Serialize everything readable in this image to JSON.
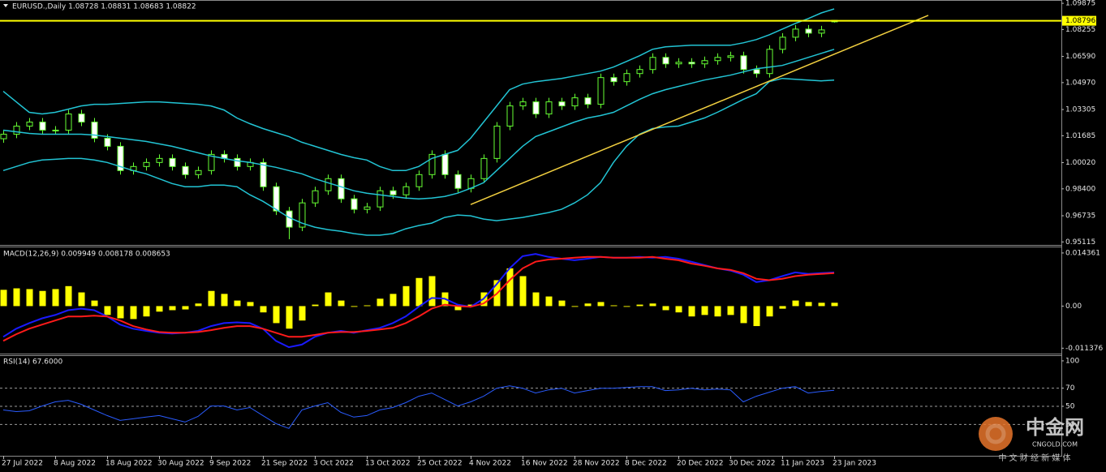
{
  "chart_data": [
    {
      "type": "candlestick",
      "title": "EURUSD.,Daily 1.08728 1.08831 1.08683 1.08822",
      "categories": [
        "27 Jul 2022",
        null,
        null,
        null,
        "8 Aug 2022",
        null,
        null,
        null,
        "18 Aug 2022",
        null,
        null,
        null,
        "30 Aug 2022",
        null,
        null,
        null,
        "9 Sep 2022",
        null,
        null,
        null,
        "21 Sep 2022",
        null,
        null,
        null,
        "3 Oct 2022",
        null,
        null,
        null,
        "13 Oct 2022",
        null,
        null,
        null,
        "25 Oct 2022",
        null,
        null,
        null,
        "4 Nov 2022",
        null,
        null,
        null,
        "16 Nov 2022",
        null,
        null,
        null,
        "28 Nov 2022",
        null,
        null,
        null,
        "8 Dec 2022",
        null,
        null,
        null,
        "20 Dec 2022",
        null,
        null,
        null,
        "30 Dec 2022",
        null,
        null,
        null,
        "11 Jan 2023",
        null,
        null,
        null,
        "23 Jan 2023"
      ],
      "open": [
        1.015,
        1.0178,
        1.0228,
        1.0253,
        1.0203,
        1.0203,
        1.0303,
        1.0253,
        1.0153,
        1.0103,
        0.9953,
        0.9978,
        1.0003,
        1.0028,
        0.9978,
        0.9928,
        0.9953,
        1.0053,
        1.0028,
        0.9978,
        1.0003,
        0.9853,
        0.9703,
        0.9603,
        0.9753,
        0.9828,
        0.9903,
        0.9778,
        0.9713,
        0.9728,
        0.9828,
        0.9803,
        0.9853,
        0.9928,
        1.0053,
        0.9928,
        0.9843,
        0.9903,
        1.0028,
        1.0228,
        1.0353,
        1.0378,
        1.0303,
        1.0378,
        1.0353,
        1.0403,
        1.0363,
        1.0528,
        1.0503,
        1.0553,
        1.0578,
        1.0653,
        1.0613,
        1.0623,
        1.0613,
        1.0633,
        1.0653,
        1.0663,
        1.0578,
        1.0553,
        1.0703,
        1.0778,
        1.0828,
        1.0803,
        1.0873
      ],
      "high": [
        1.0203,
        1.0253,
        1.0278,
        1.0278,
        1.0228,
        1.0328,
        1.0328,
        1.0278,
        1.0178,
        1.0128,
        1.0003,
        1.0028,
        1.0053,
        1.0053,
        1.0003,
        0.9978,
        1.0078,
        1.0078,
        1.0053,
        1.0028,
        1.0028,
        0.9878,
        0.9728,
        0.9778,
        0.9853,
        0.9928,
        0.9928,
        0.9803,
        0.9753,
        0.9853,
        0.9853,
        0.9878,
        0.9953,
        1.0078,
        1.0078,
        0.9953,
        0.9928,
        1.0053,
        1.0253,
        1.0378,
        1.0403,
        1.0403,
        1.0403,
        1.0403,
        1.0428,
        1.0428,
        1.0553,
        1.0553,
        1.0578,
        1.0603,
        1.0678,
        1.0678,
        1.0648,
        1.0648,
        1.0658,
        1.0678,
        1.0688,
        1.0688,
        1.0603,
        1.0728,
        1.0803,
        1.0853,
        1.0853,
        1.0848,
        1.0883
      ],
      "low": [
        1.0125,
        1.0153,
        1.0203,
        1.0178,
        1.0178,
        1.0178,
        1.0228,
        1.0128,
        1.0078,
        0.9928,
        0.9928,
        0.9953,
        0.9978,
        0.9953,
        0.9903,
        0.9903,
        0.9928,
        1.0003,
        0.9953,
        0.9953,
        0.9828,
        0.9678,
        0.9528,
        0.9578,
        0.9728,
        0.9803,
        0.9753,
        0.9688,
        0.9688,
        0.9703,
        0.9778,
        0.9778,
        0.9828,
        0.9903,
        0.9903,
        0.9818,
        0.9818,
        0.9878,
        1.0003,
        1.0203,
        1.0328,
        1.0278,
        1.0278,
        1.0328,
        1.0328,
        1.0338,
        1.0338,
        1.0478,
        1.0478,
        1.0528,
        1.0553,
        1.0588,
        1.0588,
        1.0588,
        1.0588,
        1.0608,
        1.0628,
        1.0553,
        1.0528,
        1.0528,
        1.0678,
        1.0753,
        1.0778,
        1.0778,
        1.0868
      ],
      "close": [
        1.0178,
        1.0228,
        1.0253,
        1.0203,
        1.0203,
        1.0303,
        1.0253,
        1.0153,
        1.0103,
        0.9953,
        0.9978,
        1.0003,
        1.0028,
        0.9978,
        0.9928,
        0.9953,
        1.0053,
        1.0028,
        0.9978,
        1.0003,
        0.9853,
        0.9703,
        0.9603,
        0.9753,
        0.9828,
        0.9903,
        0.9778,
        0.9713,
        0.9728,
        0.9828,
        0.9803,
        0.9853,
        0.9928,
        1.0053,
        0.9928,
        0.9843,
        0.9903,
        1.0028,
        1.0228,
        1.0353,
        1.0378,
        1.0303,
        1.0378,
        1.0353,
        1.0403,
        1.0363,
        1.0528,
        1.0503,
        1.0553,
        1.0578,
        1.0653,
        1.0613,
        1.0623,
        1.0613,
        1.0633,
        1.0653,
        1.0663,
        1.0578,
        1.0553,
        1.0703,
        1.0778,
        1.0828,
        1.0803,
        1.0823,
        1.0882
      ],
      "up_color": "#000000",
      "down_color": "#ffffff",
      "wick_color": "#66ff33",
      "overlays": [
        {
          "color": "#22c4d4",
          "values": [
            1.0443,
            1.0378,
            1.0313,
            1.0303,
            1.0313,
            1.0333,
            1.0353,
            1.0363,
            1.0363,
            1.0368,
            1.0373,
            1.0378,
            1.0378,
            1.0373,
            1.0368,
            1.0363,
            1.0353,
            1.0328,
            1.0278,
            1.0243,
            1.0213,
            1.0188,
            1.0163,
            1.0128,
            1.0103,
            1.0078,
            1.0053,
            1.0033,
            1.0018,
            0.9978,
            0.9953,
            0.9953,
            0.9978,
            1.0028,
            1.0053,
            1.0078,
            1.0153,
            1.0253,
            1.0353,
            1.0453,
            1.0488,
            1.0503,
            1.0513,
            1.0523,
            1.0538,
            1.0553,
            1.0568,
            1.0593,
            1.0628,
            1.0663,
            1.0703,
            1.0718,
            1.0723,
            1.0728,
            1.0728,
            1.0728,
            1.0728,
            1.0743,
            1.0763,
            1.0793,
            1.0828,
            1.0863,
            1.0893,
            1.0928,
            1.0953
          ]
        },
        {
          "color": "#22c4d4",
          "values": [
            1.0203,
            1.0193,
            1.0183,
            1.0178,
            1.0178,
            1.0178,
            1.0178,
            1.0173,
            1.0163,
            1.0153,
            1.0143,
            1.0133,
            1.0118,
            1.0103,
            1.0083,
            1.0063,
            1.0043,
            1.0028,
            1.0013,
            1.0003,
            0.9988,
            0.9973,
            0.9953,
            0.9933,
            0.9903,
            0.9878,
            0.9853,
            0.9828,
            0.9813,
            0.9803,
            0.9793,
            0.9783,
            0.9778,
            0.9783,
            0.9793,
            0.9813,
            0.9843,
            0.9878,
            0.9953,
            1.0028,
            1.0103,
            1.0163,
            1.0193,
            1.0223,
            1.0253,
            1.0278,
            1.0293,
            1.0313,
            1.0353,
            1.0393,
            1.0428,
            1.0453,
            1.0473,
            1.0493,
            1.0513,
            1.0528,
            1.0543,
            1.0563,
            1.0583,
            1.0593,
            1.0603,
            1.0628,
            1.0653,
            1.0678,
            1.0703
          ]
        },
        {
          "color": "#22c4d4",
          "values": [
            0.9953,
            0.9978,
            1.0003,
            1.0018,
            1.0023,
            1.0028,
            1.0028,
            1.0018,
            1.0003,
            0.9978,
            0.9953,
            0.9933,
            0.9903,
            0.9873,
            0.9853,
            0.9853,
            0.9863,
            0.9863,
            0.9853,
            0.9803,
            0.9763,
            0.9713,
            0.9663,
            0.9628,
            0.9603,
            0.9588,
            0.9578,
            0.9563,
            0.9553,
            0.9553,
            0.9563,
            0.9593,
            0.9613,
            0.9628,
            0.9663,
            0.9678,
            0.9673,
            0.9653,
            0.9643,
            0.9653,
            0.9663,
            0.9678,
            0.9693,
            0.9713,
            0.9753,
            0.9803,
            0.9878,
            1.0003,
            1.0103,
            1.0178,
            1.0213,
            1.0223,
            1.0228,
            1.0253,
            1.0278,
            1.0313,
            1.0353,
            1.0393,
            1.0428,
            1.0503,
            1.0523,
            1.0518,
            1.0513,
            1.0508,
            1.0513
          ]
        }
      ],
      "hline": {
        "value": 1.08796,
        "color": "#ffff00"
      },
      "trendline": {
        "x": [
          36,
          71.25
        ],
        "y": [
          0.9743,
          1.0913
        ],
        "color": "#f2d040"
      },
      "ylim": [
        0.9493,
        1.1003
      ],
      "yticks": [
        1.09875,
        1.08255,
        {
          "value": 1.0659,
          "label": "1.06590"
        },
        {
          "value": 1.0497,
          "label": "1.04970"
        },
        1.03305,
        1.01685,
        {
          "value": 1.0002,
          "label": "1.00020"
        },
        {
          "value": 0.984,
          "label": "0.98400"
        },
        0.96735,
        0.95115
      ]
    },
    {
      "type": "macd",
      "title": "MACD(12,26,9) 0.009949 0.008178 0.008653",
      "series": [
        {
          "marker": "bar",
          "color": "#ffff00",
          "values": [
            0.0044,
            0.0048,
            0.0046,
            0.0041,
            0.0046,
            0.0054,
            0.0037,
            0.0015,
            -0.0024,
            -0.0033,
            -0.0035,
            -0.0028,
            -0.0015,
            -0.0011,
            -0.0009,
            0.0007,
            0.0041,
            0.0033,
            0.0015,
            0.0011,
            -0.0017,
            -0.0046,
            -0.0061,
            -0.0039,
            0.0004,
            0.0037,
            0.0015,
            -0.0002,
            0.0002,
            0.002,
            0.0033,
            0.0054,
            0.0076,
            0.0081,
            0.0037,
            -0.0011,
            0.0004,
            0.0037,
            0.007,
            0.0102,
            0.0081,
            0.0037,
            0.0026,
            0.0015,
            -0.0002,
            0.0007,
            0.0011,
            0.0002,
            -0.0002,
            0.0004,
            0.0007,
            -0.0011,
            -0.0017,
            -0.0028,
            -0.0024,
            -0.0028,
            -0.0024,
            -0.0046,
            -0.0054,
            -0.0028,
            -0.0007,
            0.0015,
            0.0011,
            0.0009,
            0.0009
          ]
        },
        {
          "marker": "line",
          "color": "#1a1aff",
          "values": [
            -0.0083,
            -0.0061,
            -0.0046,
            -0.0033,
            -0.0024,
            -0.0011,
            -0.0007,
            -0.0011,
            -0.0028,
            -0.005,
            -0.0061,
            -0.0067,
            -0.0072,
            -0.0074,
            -0.0072,
            -0.0067,
            -0.0054,
            -0.0046,
            -0.0044,
            -0.0046,
            -0.0061,
            -0.0094,
            -0.0111,
            -0.0104,
            -0.0083,
            -0.0072,
            -0.0067,
            -0.0072,
            -0.0065,
            -0.0059,
            -0.0046,
            -0.0028,
            -0.0002,
            0.0022,
            0.002,
            0.0004,
            -0.0002,
            0.002,
            0.0059,
            0.0102,
            0.0135,
            0.0141,
            0.0133,
            0.0128,
            0.0124,
            0.0128,
            0.0133,
            0.0131,
            0.0131,
            0.0133,
            0.0131,
            0.0133,
            0.0128,
            0.012,
            0.0111,
            0.0102,
            0.0096,
            0.0085,
            0.0065,
            0.007,
            0.0081,
            0.0091,
            0.0087,
            0.0089,
            0.0091
          ]
        },
        {
          "marker": "line",
          "color": "#ff1a1a",
          "values": [
            -0.0094,
            -0.0076,
            -0.0061,
            -0.005,
            -0.0039,
            -0.0028,
            -0.0028,
            -0.0026,
            -0.0028,
            -0.0039,
            -0.0054,
            -0.0063,
            -0.007,
            -0.0072,
            -0.0072,
            -0.007,
            -0.0065,
            -0.0059,
            -0.0054,
            -0.0054,
            -0.0061,
            -0.0072,
            -0.0083,
            -0.0083,
            -0.0078,
            -0.0072,
            -0.007,
            -0.007,
            -0.0067,
            -0.0063,
            -0.0059,
            -0.0046,
            -0.0028,
            -0.0007,
            0.0004,
            0,
            -0.0002,
            0.0007,
            0.0033,
            0.007,
            0.0102,
            0.012,
            0.0126,
            0.0128,
            0.0131,
            0.0133,
            0.0133,
            0.0131,
            0.0131,
            0.0131,
            0.0133,
            0.0128,
            0.0124,
            0.0115,
            0.0109,
            0.0102,
            0.0098,
            0.0089,
            0.0074,
            0.007,
            0.0074,
            0.0081,
            0.0085,
            0.0087,
            0.0089
          ]
        }
      ],
      "ylim": [
        -0.01284,
        0.01588
      ],
      "yticks": [
        0.014361,
        {
          "value": 0,
          "label": "0.00"
        },
        -0.011376
      ]
    },
    {
      "type": "line",
      "title": "RSI(14) 67.6000",
      "series": [
        {
          "color": "#2a5cff",
          "values": [
            46.0,
            44.2,
            45.1,
            50.4,
            54.9,
            56.6,
            52.2,
            46.0,
            39.8,
            34.5,
            36.3,
            38.1,
            39.8,
            36.3,
            32.7,
            38.9,
            50.4,
            50.4,
            46.0,
            48.7,
            39.8,
            31.0,
            25.7,
            46.0,
            50.4,
            54.0,
            43.4,
            38.1,
            39.8,
            46.0,
            48.7,
            54.0,
            61.1,
            64.6,
            57.5,
            50.4,
            54.9,
            61.1,
            69.9,
            72.6,
            69.9,
            64.6,
            68.1,
            69.9,
            64.6,
            67.3,
            69.9,
            69.9,
            70.8,
            71.7,
            71.7,
            67.3,
            68.1,
            69.9,
            68.1,
            69.0,
            68.1,
            54.9,
            61.1,
            65.5,
            69.9,
            71.7,
            64.6,
            66.4,
            67.6
          ]
        }
      ],
      "levels": [
        70,
        50,
        30
      ],
      "ylim": [
        -4.4,
        105.3
      ],
      "yticks": [
        100,
        70,
        50,
        30
      ]
    }
  ],
  "watermark": {
    "name": "中金网",
    "site": "CNGOLD.COM",
    "slogan": "中 文 财 经 新 媒 体"
  }
}
